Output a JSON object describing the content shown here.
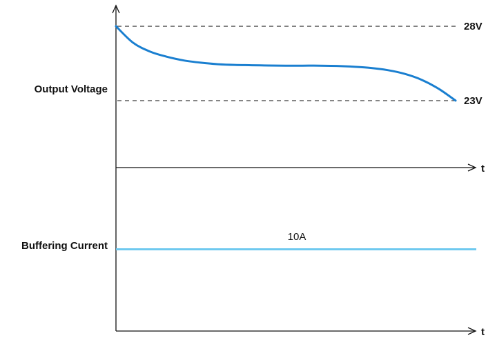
{
  "colors": {
    "axis": "#111111",
    "voltage": "#1a7fd0",
    "current": "#6ec9ef",
    "reference": "#333333"
  },
  "chart_data": [
    {
      "type": "line",
      "title": "",
      "ylabel": "Output Voltage",
      "xlabel": "t",
      "grid": false,
      "reference_lines": [
        {
          "label": "28V",
          "value": 28
        },
        {
          "label": "23V",
          "value": 23
        }
      ],
      "ylim": [
        18.5,
        29.3
      ],
      "xlim": [
        0,
        1
      ],
      "series": [
        {
          "x": [
            0,
            0.05,
            0.1,
            0.15,
            0.2,
            0.25,
            0.3,
            0.35,
            0.4,
            0.45,
            0.5,
            0.55,
            0.6,
            0.65,
            0.7,
            0.75,
            0.8,
            0.85,
            0.9,
            0.95,
            1.0
          ],
          "values": [
            28.0,
            26.9,
            26.3,
            25.95,
            25.7,
            25.55,
            25.45,
            25.4,
            25.38,
            25.36,
            25.35,
            25.35,
            25.35,
            25.33,
            25.28,
            25.2,
            25.05,
            24.8,
            24.4,
            23.8,
            23.0
          ]
        }
      ]
    },
    {
      "type": "line",
      "title": "",
      "ylabel": "Buffering Current",
      "xlabel": "t",
      "grid": false,
      "annotation": "10A",
      "ylim": [
        0,
        20
      ],
      "xlim": [
        0,
        1
      ],
      "series": [
        {
          "x": [
            0,
            1
          ],
          "values": [
            10,
            10
          ]
        }
      ]
    }
  ]
}
